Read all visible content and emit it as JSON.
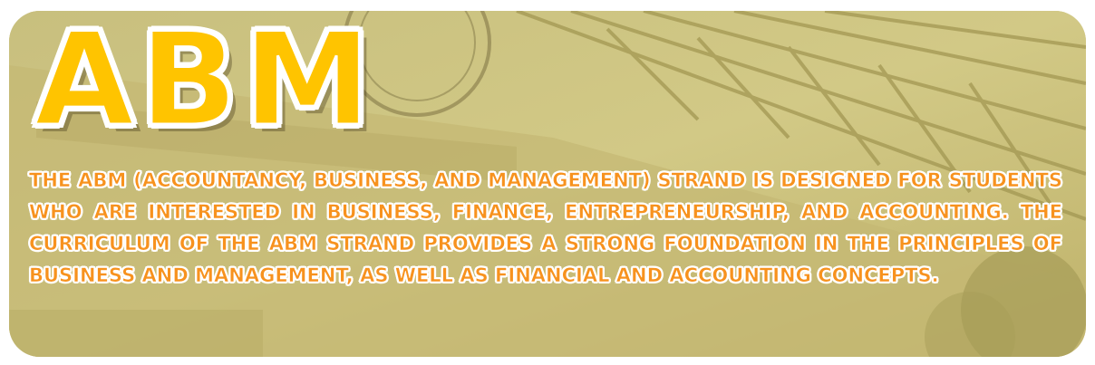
{
  "banner": {
    "heading": "ABM",
    "description": "The ABM (Accountancy, Business, and Management) strand is designed for students who are interested in business, finance, entrepreneurship, and accounting. The curriculum of the ABM strand provides a strong foundation in the principles of business and management, as well as financial and accounting concepts."
  },
  "colors": {
    "heading_fill": "#ffc400",
    "text_fill": "#f7921e",
    "outline": "#ffffff",
    "photo_tint": "#cbc17c"
  }
}
